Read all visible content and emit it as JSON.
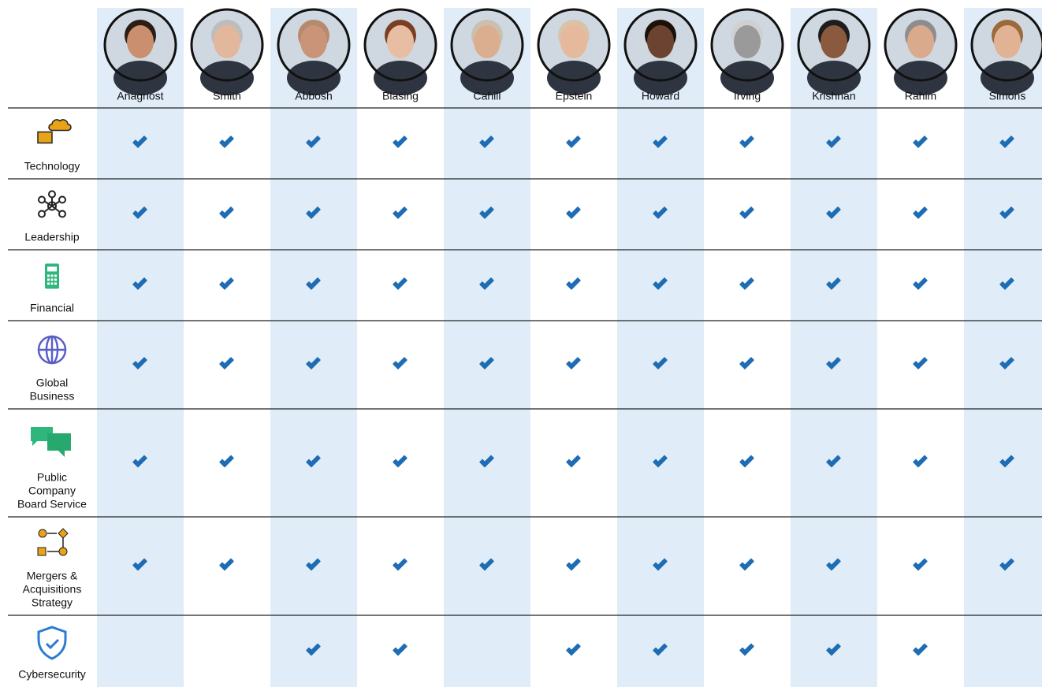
{
  "directors": [
    "Anagnost",
    "Smith",
    "Abbosh",
    "Blasing",
    "Cahill",
    "Epstein",
    "Howard",
    "Irving",
    "Krishnan",
    "Rahim",
    "Simons"
  ],
  "skills": [
    {
      "label_lines": [
        "Technology"
      ],
      "checks": [
        true,
        true,
        true,
        true,
        true,
        true,
        true,
        true,
        true,
        true,
        true
      ]
    },
    {
      "label_lines": [
        "Leadership"
      ],
      "checks": [
        true,
        true,
        true,
        true,
        true,
        true,
        true,
        true,
        true,
        true,
        true
      ]
    },
    {
      "label_lines": [
        "Financial"
      ],
      "checks": [
        true,
        true,
        true,
        true,
        true,
        true,
        true,
        true,
        true,
        true,
        true
      ]
    },
    {
      "label_lines": [
        "Global",
        "Business"
      ],
      "checks": [
        true,
        true,
        true,
        true,
        true,
        true,
        true,
        true,
        true,
        true,
        true
      ]
    },
    {
      "label_lines": [
        "Public",
        "Company",
        "Board Service"
      ],
      "checks": [
        true,
        true,
        true,
        true,
        true,
        true,
        true,
        true,
        true,
        true,
        true
      ]
    },
    {
      "label_lines": [
        "Mergers &",
        "Acquisitions",
        "Strategy"
      ],
      "checks": [
        true,
        true,
        true,
        true,
        true,
        true,
        true,
        true,
        true,
        true,
        true
      ]
    },
    {
      "label_lines": [
        "Cybersecurity"
      ],
      "checks": [
        false,
        false,
        true,
        true,
        false,
        true,
        true,
        true,
        true,
        true,
        false
      ]
    }
  ]
}
